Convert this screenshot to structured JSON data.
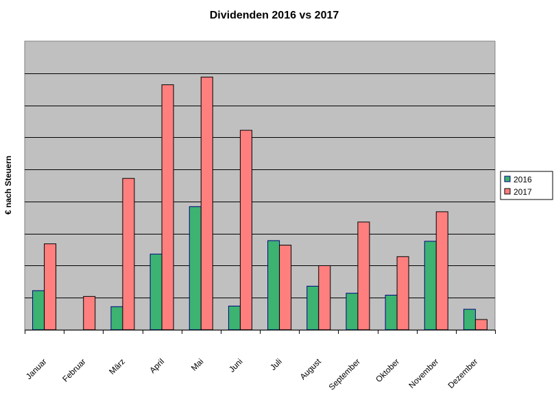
{
  "chart_data": {
    "type": "bar",
    "title": "Dividenden 2016 vs 2017",
    "ylabel": "€ nach Steuern",
    "xlabel": "",
    "categories": [
      "Januar",
      "Februar",
      "März",
      "April",
      "Mai",
      "Juni",
      "Juli",
      "August",
      "September",
      "Oktober",
      "November",
      "Dezember"
    ],
    "series": [
      {
        "name": "2016",
        "color": "#3cb371",
        "values": [
          1.22,
          0.0,
          0.72,
          2.36,
          3.84,
          0.74,
          2.78,
          1.36,
          1.14,
          1.08,
          2.76,
          0.64
        ]
      },
      {
        "name": "2017",
        "color": "#ff7f7f",
        "values": [
          2.68,
          1.04,
          4.72,
          7.64,
          7.88,
          6.22,
          2.64,
          2.0,
          3.36,
          2.28,
          3.68,
          0.32
        ]
      }
    ],
    "ylim": [
      0,
      9
    ],
    "gridlines": [
      0,
      1,
      2,
      3,
      4,
      5,
      6,
      7,
      8,
      9
    ],
    "y_tick_labels_visible": false,
    "grid": true,
    "plot_background": "#c0c0c0",
    "legend_position": "right"
  }
}
